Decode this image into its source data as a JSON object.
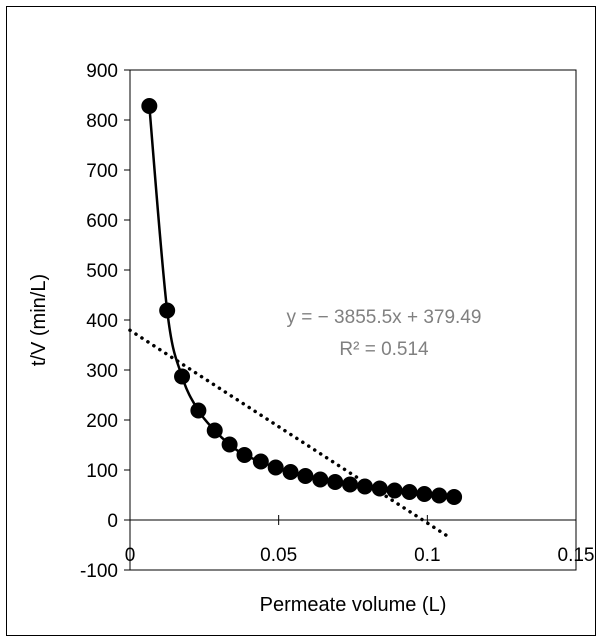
{
  "chart_data": {
    "type": "scatter",
    "xlabel": "Permeate volume (L)",
    "ylabel": "t/V (min/L)",
    "xlim": [
      0,
      0.15
    ],
    "ylim": [
      -100,
      900
    ],
    "x_ticks": [
      "0",
      "0.05",
      "0.1",
      "0.15"
    ],
    "y_ticks": [
      "-100",
      "0",
      "100",
      "200",
      "300",
      "400",
      "500",
      "600",
      "700",
      "800",
      "900"
    ],
    "grid": false,
    "legend": "none",
    "marker_color": "#000000",
    "trendline_color": "#000000",
    "series": [
      {
        "marker": "filled-circle",
        "connected": "smooth-line",
        "x": [
          0.0065,
          0.0125,
          0.0175,
          0.023,
          0.0285,
          0.0335,
          0.0385,
          0.044,
          0.049,
          0.054,
          0.059,
          0.064,
          0.069,
          0.074,
          0.079,
          0.084,
          0.089,
          0.094,
          0.099,
          0.104,
          0.109
        ],
        "y": [
          828,
          419,
          287,
          219,
          179,
          151,
          130,
          117,
          105,
          96,
          88,
          81,
          76,
          71,
          67,
          63,
          59,
          56,
          52,
          49,
          46
        ]
      }
    ],
    "trendline": {
      "type": "linear",
      "style": "dotted",
      "slope": -3855.5,
      "intercept": 379.49,
      "x_range": [
        0,
        0.108
      ]
    },
    "annotation": {
      "equation": "y = − 3855.5x + 379.49",
      "r_squared": "R² = 0.514",
      "color": "#808080"
    }
  }
}
